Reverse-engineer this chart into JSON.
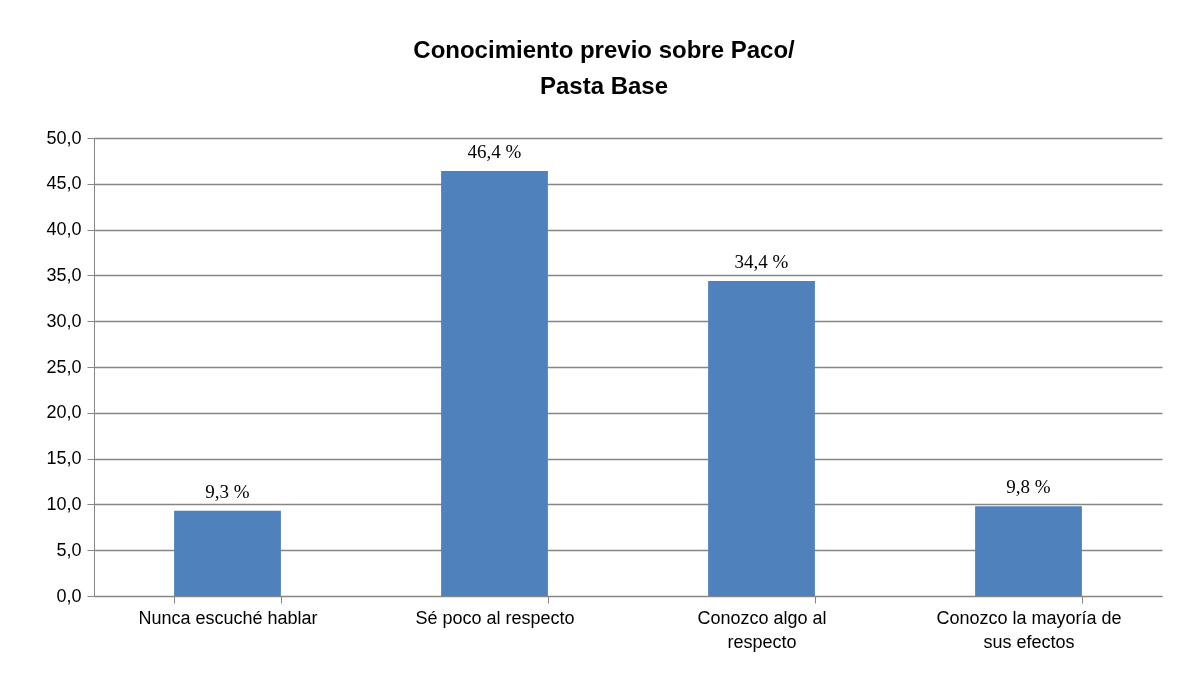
{
  "chart_data": {
    "type": "bar",
    "title": "Conocimiento previo sobre Paco/ Pasta Base",
    "categories": [
      "Nunca escuché hablar",
      "Sé poco al respecto",
      "Conozco algo al respecto",
      "Conozco la mayoría de sus efectos"
    ],
    "values": [
      9.3,
      46.4,
      34.4,
      9.8
    ],
    "color": "#4f81bd",
    "value_labels": [
      "9,3 %",
      "46,4 %",
      "34,4 %",
      "9,8 %"
    ],
    "ylim": [
      0,
      50
    ],
    "yticks": [
      {
        "value": 0,
        "label": "0,0"
      },
      {
        "value": 5,
        "label": "5,0"
      },
      {
        "value": 10,
        "label": "10,0"
      },
      {
        "value": 15,
        "label": "15,0"
      },
      {
        "value": 20,
        "label": "20,0"
      },
      {
        "value": 25,
        "label": "25,0"
      },
      {
        "value": 30,
        "label": "30,0"
      },
      {
        "value": 35,
        "label": "35,0"
      },
      {
        "value": 40,
        "label": "40,0"
      },
      {
        "value": 45,
        "label": "45,0"
      },
      {
        "value": 50,
        "label": "50,0"
      }
    ],
    "grid": "y"
  }
}
